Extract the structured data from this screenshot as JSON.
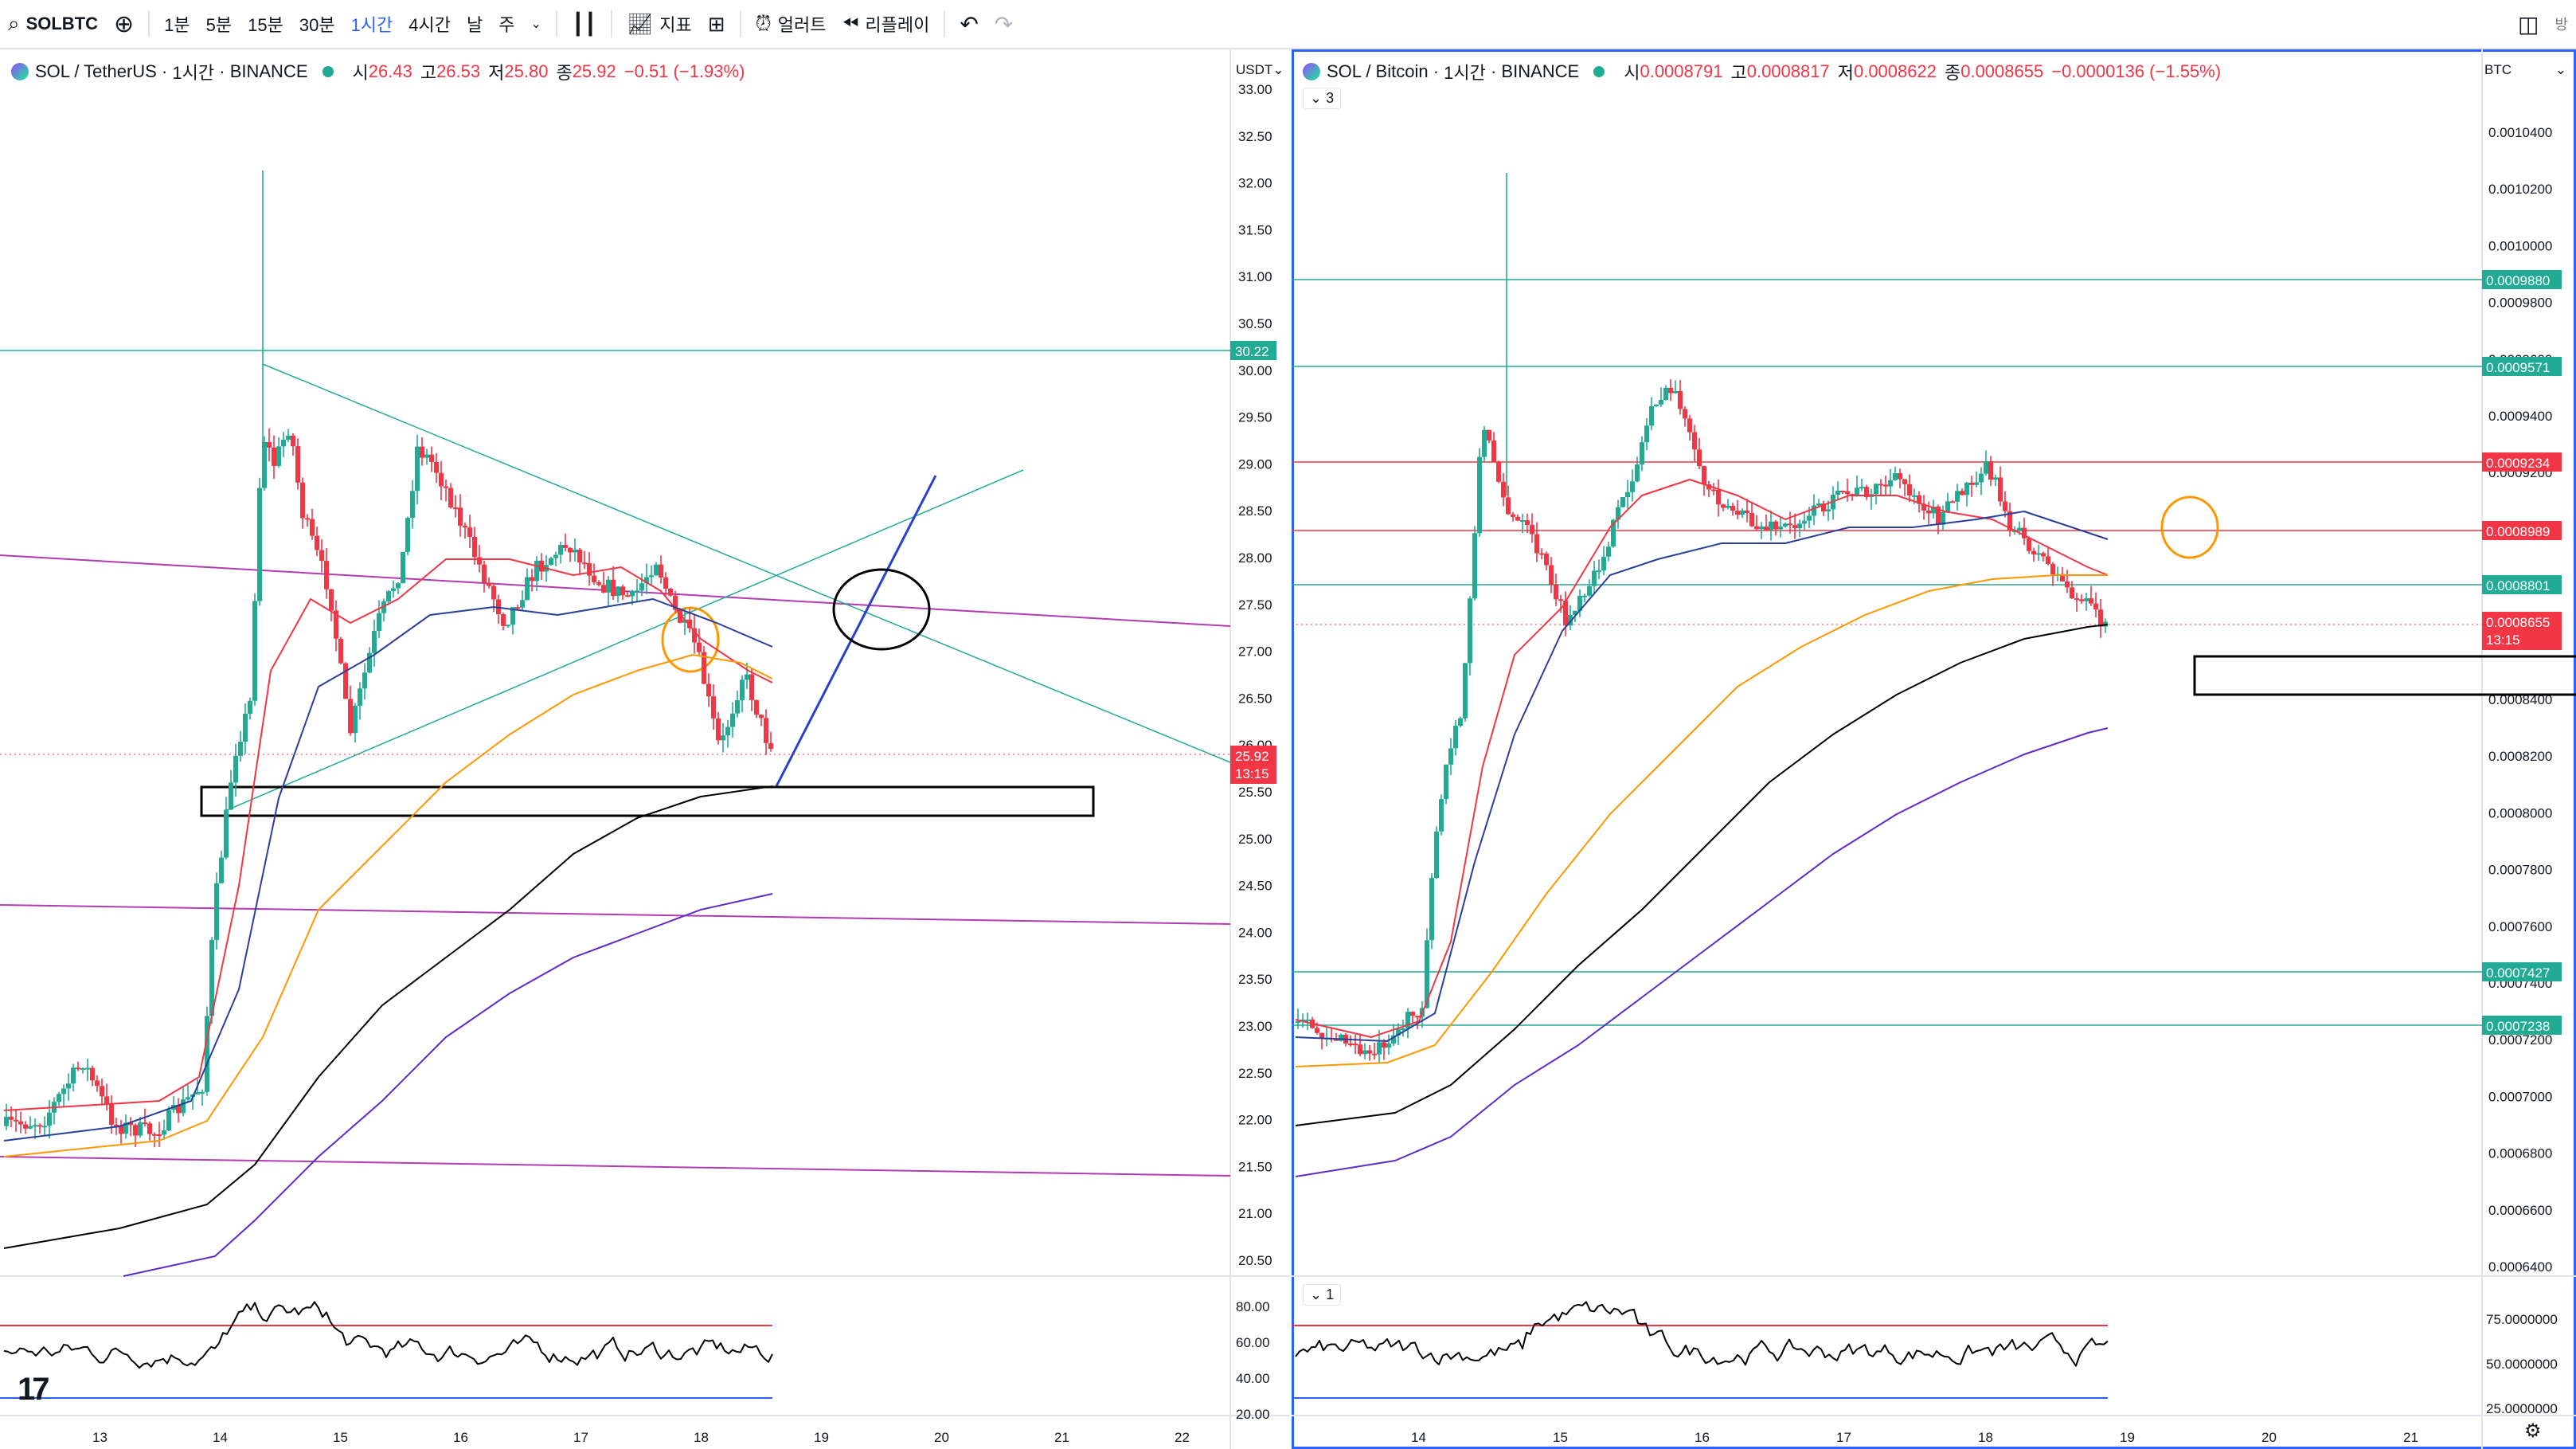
{
  "toolbar": {
    "symbol": "SOLBTC",
    "intervals": [
      "1분",
      "5분",
      "15분",
      "30분",
      "1시간",
      "4시간",
      "날",
      "주"
    ],
    "active_interval": "1시간",
    "indicators_label": "지표",
    "alert_label": "얼러트",
    "replay_label": "리플레이",
    "overflow_label": "방"
  },
  "colors": {
    "up": "#22ab94",
    "down": "#f23645",
    "ema_fast": "#f23645",
    "ema_mid": "#2a3f99",
    "ema_orange": "#ff9800",
    "ema_black": "#000000",
    "ema_purple": "#5b2cc9",
    "hline_teal": "#22ab94",
    "hline_red": "#f23645",
    "hline_purple": "#b33ab3",
    "accent": "#2962ff"
  },
  "left_chart": {
    "pair": "SOL / TetherUS",
    "interval": "1시간",
    "exchange": "BINANCE",
    "open": "26.43",
    "high": "26.53",
    "low": "25.80",
    "close": "25.92",
    "change": "−0.51 (−1.93%)",
    "o_label": "시",
    "h_label": "고",
    "l_label": "저",
    "c_label": "종",
    "currency": "USDT",
    "y_ticks": [
      "33.00",
      "32.50",
      "32.00",
      "31.50",
      "31.00",
      "30.50",
      "30.00",
      "29.50",
      "29.00",
      "28.50",
      "28.00",
      "27.50",
      "27.00",
      "26.50",
      "26.00",
      "25.50",
      "25.00",
      "24.50",
      "24.00",
      "23.50",
      "23.00",
      "22.50",
      "22.00",
      "21.50",
      "21.00",
      "20.50"
    ],
    "x_ticks": [
      "13",
      "14",
      "15",
      "16",
      "17",
      "18",
      "19",
      "20",
      "21",
      "22"
    ],
    "price_tag_hline": "30.22",
    "last_price": "25.92",
    "countdown": "13:15",
    "rsi_ticks": [
      "80.00",
      "60.00",
      "40.00",
      "20.00"
    ]
  },
  "right_chart": {
    "pair": "SOL / Bitcoin",
    "interval": "1시간",
    "exchange": "BINANCE",
    "open": "0.0008791",
    "high": "0.0008817",
    "low": "0.0008622",
    "close": "0.0008655",
    "change": "−0.0000136 (−1.55%)",
    "o_label": "시",
    "h_label": "고",
    "l_label": "저",
    "c_label": "종",
    "currency": "BTC",
    "pane_count": "3",
    "rsi_pane_count": "1",
    "y_ticks": [
      "0.0010400",
      "0.0010200",
      "0.0010000",
      "0.0009800",
      "0.0009600",
      "0.0009400",
      "0.0009200",
      "0.0009000",
      "0.0008800",
      "0.0008600",
      "0.0008400",
      "0.0008200",
      "0.0008000",
      "0.0007800",
      "0.0007600",
      "0.0007400",
      "0.0007200",
      "0.0007000",
      "0.0006800",
      "0.0006600",
      "0.0006400"
    ],
    "x_ticks": [
      "14",
      "15",
      "16",
      "17",
      "18",
      "19",
      "20",
      "21"
    ],
    "hline_tags": [
      {
        "value": "0.0009880",
        "color": "#22ab94"
      },
      {
        "value": "0.0009571",
        "color": "#22ab94"
      },
      {
        "value": "0.0009234",
        "color": "#f23645"
      },
      {
        "value": "0.0008989",
        "color": "#f23645"
      },
      {
        "value": "0.0008801",
        "color": "#22ab94"
      },
      {
        "value": "0.0007427",
        "color": "#22ab94"
      },
      {
        "value": "0.0007238",
        "color": "#22ab94"
      }
    ],
    "last_price": "0.0008655",
    "countdown": "13:15",
    "rsi_ticks": [
      "75.0000000",
      "50.0000000",
      "25.0000000"
    ]
  }
}
